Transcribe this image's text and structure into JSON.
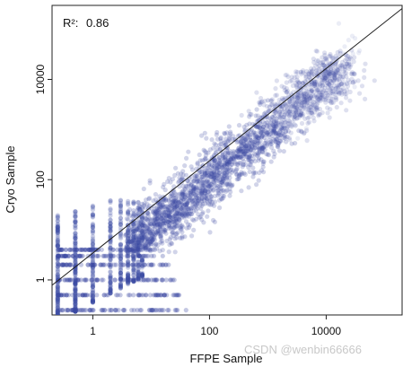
{
  "chart_data": {
    "type": "scatter",
    "xlabel": "FFPE Sample",
    "ylabel": "Cryo Sample",
    "x_scale": "log10",
    "y_scale": "log10",
    "xlim": [
      0.2,
      200000
    ],
    "ylim": [
      0.2,
      300000
    ],
    "x_ticks": [
      1,
      100,
      10000
    ],
    "x_tick_labels": [
      "1",
      "100",
      "10000"
    ],
    "y_ticks": [
      1,
      100,
      10000
    ],
    "y_tick_labels": [
      "1",
      "100",
      "10000"
    ],
    "annotation": {
      "label": "R²:",
      "value": "0.86",
      "position": "top-left"
    },
    "regression_line": {
      "points": [
        [
          0.15,
          0.6
        ],
        [
          200000,
          260000
        ]
      ]
    },
    "point_color": "#3d4aa3",
    "grid": false,
    "legend": "none",
    "series": [
      {
        "values": "dense cloud of points along y ≈ x from about 2 to 20000 on both axes, with discrete columns at low FFPE counts (0.25, 0.5, 1, 2, 3, 4, 5 …) and discrete rows at low Cryo counts (0.25, 0.5, 1, 2, 3 …)"
      }
    ]
  },
  "watermark": "CSDN @wenbin66666"
}
